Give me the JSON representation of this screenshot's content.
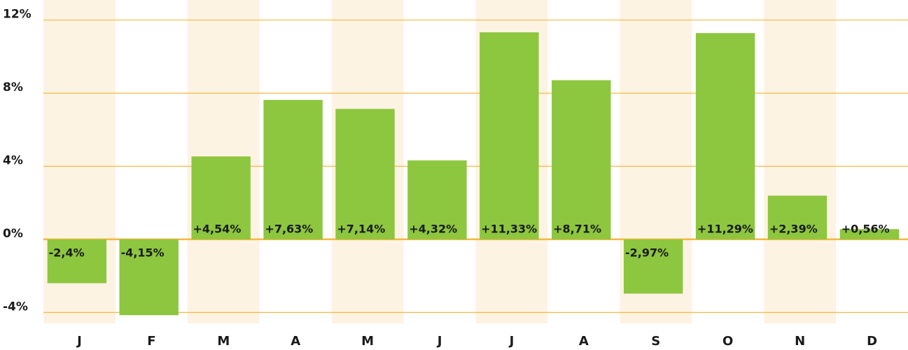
{
  "chart_data": {
    "type": "bar",
    "categories": [
      "J",
      "F",
      "M",
      "A",
      "M",
      "J",
      "J",
      "A",
      "S",
      "O",
      "N",
      "D"
    ],
    "values": [
      -2.4,
      -4.15,
      4.54,
      7.63,
      7.14,
      4.32,
      11.33,
      8.71,
      -2.97,
      11.29,
      2.39,
      0.56
    ],
    "value_labels": [
      "-2,4%",
      "-4,15%",
      "+4,54%",
      "+7,63%",
      "+7,14%",
      "+4,32%",
      "+11,33%",
      "+8,71%",
      "-2,97%",
      "+11,29%",
      "+2,39%",
      "+0,56%"
    ],
    "color": "#8dc63f",
    "grid_color": "#f5b940",
    "ylim": [
      -4.6,
      13.1
    ],
    "yticks": [
      {
        "value": -4,
        "label": "-4%"
      },
      {
        "value": 0,
        "label": "0%"
      },
      {
        "value": 4,
        "label": "4%"
      },
      {
        "value": 8,
        "label": "8%"
      },
      {
        "value": 12,
        "label": "12%"
      }
    ],
    "grid": true
  }
}
